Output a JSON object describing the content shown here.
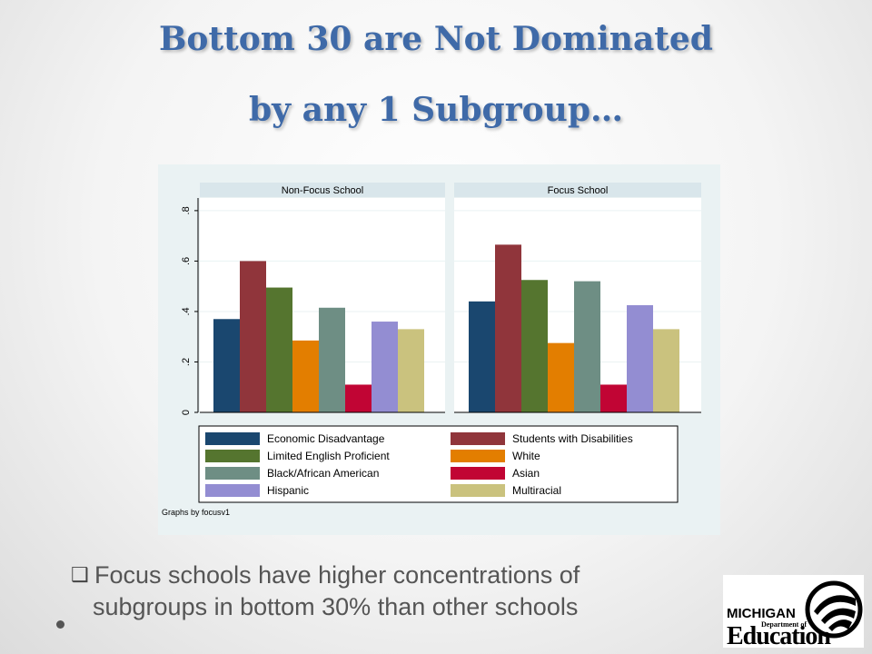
{
  "slide": {
    "title_line1": "Bottom 30 are Not Dominated",
    "title_line2": "by any 1 Subgroup…",
    "bullet_line1": "Focus schools have higher concentrations of",
    "bullet_line2": "subgroups in bottom 30% than other schools",
    "logo": {
      "michigan": "MICHIGAN",
      "department_of": "Department of",
      "education": "Education"
    }
  },
  "chart_data": {
    "type": "bar",
    "panels": [
      "Non-Focus School",
      "Focus School"
    ],
    "note": "Graphs by focusv1",
    "ylim": [
      0,
      0.85
    ],
    "yticks": [
      0,
      0.2,
      0.4,
      0.6,
      0.8
    ],
    "ytick_labels": [
      "0",
      ".2",
      ".4",
      ".6",
      ".8"
    ],
    "legend_position": "bottom",
    "grid": true,
    "series": [
      {
        "name": "Economic Disadvantage",
        "color": "#1a476f",
        "values": [
          0.37,
          0.44
        ]
      },
      {
        "name": "Students with Disabilities",
        "color": "#90353b",
        "values": [
          0.6,
          0.665
        ]
      },
      {
        "name": "Limited English Proficient",
        "color": "#55752f",
        "values": [
          0.495,
          0.525
        ]
      },
      {
        "name": "White",
        "color": "#e37e00",
        "values": [
          0.285,
          0.275
        ]
      },
      {
        "name": "Black/African American",
        "color": "#6e8e84",
        "values": [
          0.415,
          0.52
        ]
      },
      {
        "name": "Asian",
        "color": "#c10534",
        "values": [
          0.11,
          0.11
        ]
      },
      {
        "name": "Hispanic",
        "color": "#938dd2",
        "values": [
          0.36,
          0.425
        ]
      },
      {
        "name": "Multiracial",
        "color": "#cac27e",
        "values": [
          0.33,
          0.33
        ]
      }
    ]
  }
}
